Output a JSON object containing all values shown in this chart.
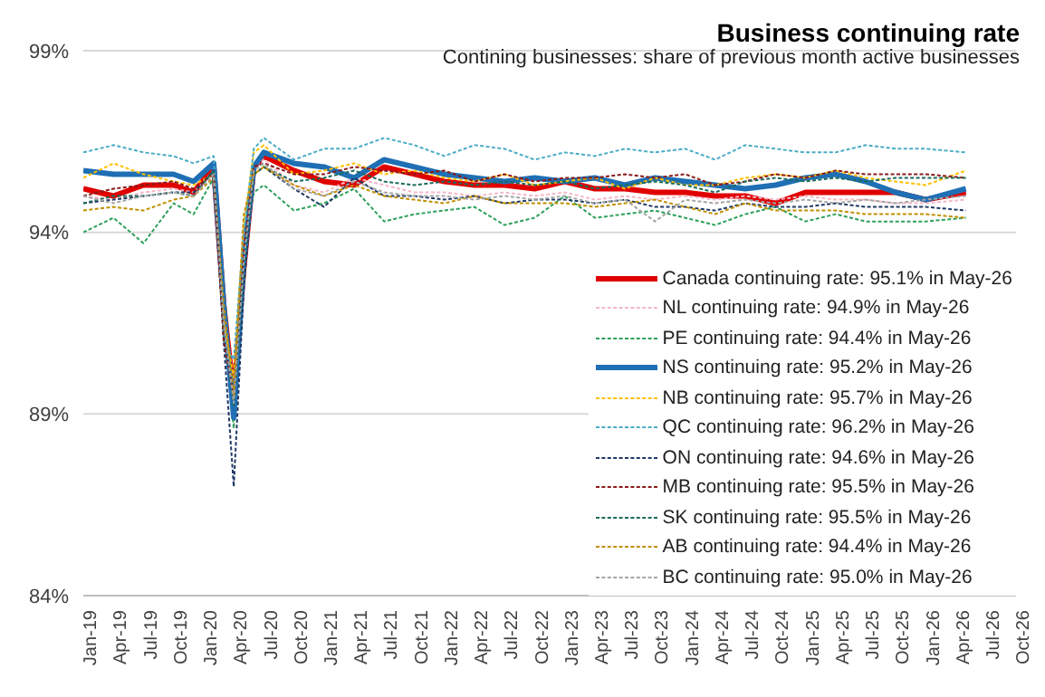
{
  "chart_data": {
    "type": "line",
    "title": "Business continuing rate",
    "subtitle": "Contining businesses: share of previous month active businesses",
    "x": [
      "2019-01",
      "2019-04",
      "2019-07",
      "2019-10",
      "2019-12",
      "2020-02",
      "2020-03",
      "2020-04",
      "2020-05",
      "2020-06",
      "2020-07",
      "2020-10",
      "2021-01",
      "2021-04",
      "2021-07",
      "2021-10",
      "2022-01",
      "2022-04",
      "2022-07",
      "2022-10",
      "2023-01",
      "2023-04",
      "2023-07",
      "2023-10",
      "2024-01",
      "2024-04",
      "2024-07",
      "2024-10",
      "2025-01",
      "2025-04",
      "2025-07",
      "2025-10",
      "2026-01",
      "2026-05"
    ],
    "series": [
      {
        "name": "Canada continuing rate: 95.1% in May-26",
        "color": "#e00000",
        "line_style": "solid",
        "values": [
          95.2,
          95.0,
          95.3,
          95.3,
          95.1,
          95.8,
          92.0,
          89.5,
          93.0,
          95.8,
          96.1,
          95.7,
          95.4,
          95.3,
          95.8,
          95.6,
          95.4,
          95.3,
          95.3,
          95.2,
          95.4,
          95.2,
          95.2,
          95.1,
          95.1,
          95.0,
          95.0,
          94.8,
          95.1,
          95.1,
          95.1,
          95.1,
          94.9,
          95.1
        ]
      },
      {
        "name": "NL continuing rate: 94.9% in May-26",
        "color": "#f4b8c8",
        "line_style": "dashed",
        "values": [
          95.0,
          94.9,
          95.1,
          95.2,
          95.1,
          95.7,
          91.8,
          89.8,
          93.0,
          95.8,
          96.0,
          95.3,
          95.1,
          95.5,
          95.3,
          95.1,
          95.1,
          95.0,
          95.1,
          95.0,
          95.1,
          94.9,
          95.0,
          94.9,
          95.0,
          94.9,
          95.0,
          94.9,
          95.0,
          94.9,
          94.9,
          94.8,
          94.8,
          94.9
        ]
      },
      {
        "name": "PE continuing rate: 94.4% in May-26",
        "color": "#2ca05a",
        "line_style": "dashed",
        "values": [
          94.0,
          94.4,
          93.7,
          94.8,
          94.5,
          95.5,
          91.5,
          88.6,
          93.6,
          95.1,
          95.3,
          94.6,
          94.8,
          95.2,
          94.3,
          94.5,
          94.6,
          94.7,
          94.2,
          94.4,
          95.0,
          94.4,
          94.5,
          94.6,
          94.4,
          94.2,
          94.5,
          94.7,
          94.3,
          94.5,
          94.3,
          94.3,
          94.3,
          94.4
        ]
      },
      {
        "name": "NS continuing rate: 95.2% in May-26",
        "color": "#1f6fb4",
        "line_style": "solid",
        "values": [
          95.7,
          95.6,
          95.6,
          95.6,
          95.4,
          95.9,
          92.0,
          88.9,
          93.2,
          95.8,
          96.2,
          95.9,
          95.8,
          95.5,
          96.0,
          95.8,
          95.6,
          95.5,
          95.4,
          95.5,
          95.4,
          95.5,
          95.3,
          95.5,
          95.4,
          95.3,
          95.2,
          95.3,
          95.5,
          95.6,
          95.4,
          95.1,
          94.9,
          95.2
        ]
      },
      {
        "name": "NB continuing rate: 95.7% in May-26",
        "color": "#ffc000",
        "line_style": "dashed",
        "values": [
          95.5,
          95.9,
          95.6,
          95.4,
          95.3,
          95.6,
          91.5,
          90.0,
          94.2,
          96.2,
          96.4,
          95.6,
          95.7,
          95.9,
          95.6,
          95.7,
          95.5,
          95.4,
          95.6,
          95.3,
          95.4,
          95.5,
          95.2,
          95.5,
          95.3,
          95.3,
          95.5,
          95.6,
          95.5,
          95.7,
          95.5,
          95.4,
          95.3,
          95.7
        ]
      },
      {
        "name": "QC continuing rate: 96.2% in May-26",
        "color": "#4bacc6",
        "line_style": "dashed",
        "values": [
          96.2,
          96.4,
          96.2,
          96.1,
          95.9,
          96.1,
          91.0,
          90.5,
          94.0,
          96.3,
          96.6,
          96.0,
          96.3,
          96.3,
          96.6,
          96.4,
          96.1,
          96.4,
          96.3,
          96.0,
          96.2,
          96.1,
          96.3,
          96.2,
          96.3,
          96.0,
          96.4,
          96.3,
          96.2,
          96.2,
          96.4,
          96.3,
          96.3,
          96.2
        ]
      },
      {
        "name": "ON continuing rate: 94.6% in May-26",
        "color": "#1f3864",
        "line_style": "dashed",
        "values": [
          94.8,
          94.9,
          95.0,
          95.1,
          95.1,
          95.7,
          91.0,
          87.0,
          92.5,
          95.6,
          95.8,
          95.2,
          94.7,
          95.5,
          95.0,
          95.0,
          94.9,
          95.0,
          94.8,
          94.9,
          94.9,
          94.8,
          94.9,
          94.7,
          94.7,
          94.6,
          94.8,
          94.7,
          94.7,
          94.8,
          94.7,
          94.7,
          94.7,
          94.6
        ]
      },
      {
        "name": "MB continuing rate: 95.5% in May-26",
        "color": "#8b1a1a",
        "line_style": "dashed",
        "values": [
          95.0,
          95.2,
          95.3,
          95.4,
          95.2,
          95.6,
          91.0,
          89.5,
          93.5,
          95.8,
          95.9,
          95.6,
          95.6,
          95.8,
          95.7,
          95.6,
          95.7,
          95.4,
          95.6,
          95.4,
          95.5,
          95.5,
          95.6,
          95.5,
          95.6,
          95.3,
          95.4,
          95.6,
          95.5,
          95.7,
          95.6,
          95.6,
          95.6,
          95.5
        ]
      },
      {
        "name": "SK continuing rate: 95.5% in May-26",
        "color": "#1b6b5a",
        "line_style": "dashed",
        "values": [
          94.8,
          95.0,
          95.0,
          95.1,
          95.0,
          95.7,
          91.5,
          89.2,
          93.0,
          95.6,
          95.8,
          95.4,
          95.5,
          95.7,
          95.4,
          95.3,
          95.4,
          95.3,
          95.4,
          95.3,
          95.4,
          95.2,
          95.3,
          95.4,
          95.3,
          95.1,
          95.4,
          95.5,
          95.4,
          95.5,
          95.4,
          95.5,
          95.5,
          95.5
        ]
      },
      {
        "name": "AB continuing rate: 94.4% in May-26",
        "color": "#c09000",
        "line_style": "dashed",
        "values": [
          94.6,
          94.7,
          94.6,
          94.9,
          95.0,
          95.5,
          92.0,
          89.5,
          94.5,
          95.6,
          95.8,
          95.3,
          95.0,
          95.3,
          95.0,
          94.9,
          94.8,
          95.0,
          94.8,
          94.8,
          94.8,
          94.7,
          94.8,
          94.9,
          94.7,
          94.5,
          94.8,
          94.6,
          94.6,
          94.6,
          94.5,
          94.5,
          94.5,
          94.4
        ]
      },
      {
        "name": "BC continuing rate: 95.0% in May-26",
        "color": "#a5a5a5",
        "line_style": "dashed",
        "values": [
          95.0,
          94.8,
          95.0,
          95.1,
          95.0,
          95.6,
          91.5,
          89.3,
          93.2,
          95.7,
          95.9,
          95.2,
          95.0,
          95.4,
          95.1,
          95.0,
          95.0,
          94.9,
          95.0,
          94.9,
          95.0,
          94.8,
          94.9,
          94.3,
          94.9,
          94.8,
          94.9,
          94.8,
          94.9,
          94.8,
          94.9,
          94.8,
          94.9,
          95.0
        ]
      }
    ],
    "ylim": [
      84,
      99
    ],
    "yticks": [
      {
        "value": 84,
        "label": "84%"
      },
      {
        "value": 89,
        "label": "89%"
      },
      {
        "value": 94,
        "label": "94%"
      },
      {
        "value": 99,
        "label": "99%"
      }
    ],
    "xlim": [
      "2019-01",
      "2026-10"
    ],
    "xticks": [
      {
        "value": "2019-01",
        "label": "Jan-19"
      },
      {
        "value": "2019-04",
        "label": "Apr-19"
      },
      {
        "value": "2019-07",
        "label": "Jul-19"
      },
      {
        "value": "2019-10",
        "label": "Oct-19"
      },
      {
        "value": "2020-01",
        "label": "Jan-20"
      },
      {
        "value": "2020-04",
        "label": "Apr-20"
      },
      {
        "value": "2020-07",
        "label": "Jul-20"
      },
      {
        "value": "2020-10",
        "label": "Oct-20"
      },
      {
        "value": "2021-01",
        "label": "Jan-21"
      },
      {
        "value": "2021-04",
        "label": "Apr-21"
      },
      {
        "value": "2021-07",
        "label": "Jul-21"
      },
      {
        "value": "2021-10",
        "label": "Oct-21"
      },
      {
        "value": "2022-01",
        "label": "Jan-22"
      },
      {
        "value": "2022-04",
        "label": "Apr-22"
      },
      {
        "value": "2022-07",
        "label": "Jul-22"
      },
      {
        "value": "2022-10",
        "label": "Oct-22"
      },
      {
        "value": "2023-01",
        "label": "Jan-23"
      },
      {
        "value": "2023-04",
        "label": "Apr-23"
      },
      {
        "value": "2023-07",
        "label": "Jul-23"
      },
      {
        "value": "2023-10",
        "label": "Oct-23"
      },
      {
        "value": "2024-01",
        "label": "Jan-24"
      },
      {
        "value": "2024-04",
        "label": "Apr-24"
      },
      {
        "value": "2024-07",
        "label": "Jul-24"
      },
      {
        "value": "2024-10",
        "label": "Oct-24"
      },
      {
        "value": "2025-01",
        "label": "Jan-25"
      },
      {
        "value": "2025-04",
        "label": "Apr-25"
      },
      {
        "value": "2025-07",
        "label": "Jul-25"
      },
      {
        "value": "2025-10",
        "label": "Oct-25"
      },
      {
        "value": "2026-01",
        "label": "Jan-26"
      },
      {
        "value": "2026-04",
        "label": "Apr-26"
      },
      {
        "value": "2026-07",
        "label": "Jul-26"
      },
      {
        "value": "2026-10",
        "label": "Oct-26"
      }
    ],
    "grid": "y",
    "legend": "bottom right"
  }
}
